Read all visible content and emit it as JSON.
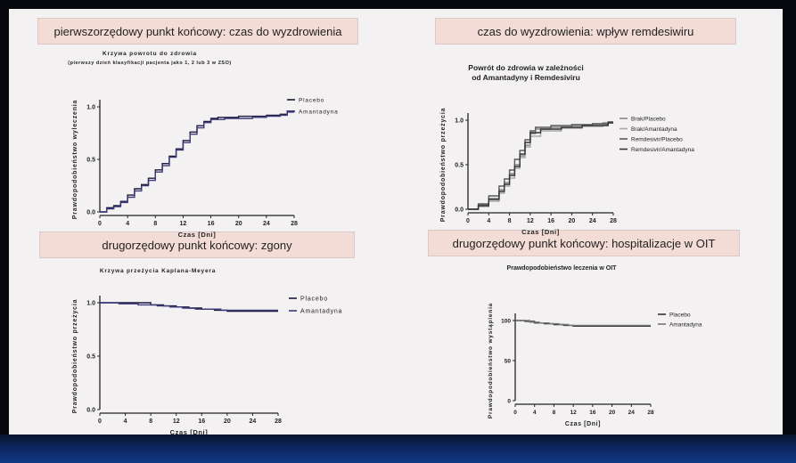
{
  "panels": {
    "tl": {
      "header": "pierwszorzędowy punkt końcowy: czas do wyzdrowienia"
    },
    "tr": {
      "header": "czas do wyzdrowienia: wpływ remdesiwiru"
    },
    "bl": {
      "header": "drugorzędowy punkt końcowy: zgony"
    },
    "br": {
      "header": "drugorzędowy punkt końcowy: hospitalizacje w OIT"
    }
  },
  "chart_data": [
    {
      "type": "line",
      "title": "Krzywa powrotu do zdrowia",
      "subtitle": "(pierwszy dzień klasyfikacji pacjenta jako 1, 2 lub 3 w ZSO)",
      "xlabel": "Czas [Dni]",
      "ylabel": "Prawdopodobieństwo wyleczenia",
      "xticks": [
        "0",
        "4",
        "8",
        "12",
        "16",
        "20",
        "24",
        "28"
      ],
      "yticks": [
        "0.0",
        "0.5",
        "1.0"
      ],
      "xlim": [
        0,
        28
      ],
      "ylim": [
        0,
        1
      ],
      "legend_position": "right",
      "step": true,
      "series": [
        {
          "name": "Placebo",
          "color": "#1b1b3a",
          "x": [
            0,
            1,
            2,
            3,
            4,
            5,
            6,
            7,
            8,
            9,
            10,
            11,
            12,
            13,
            14,
            15,
            16,
            17,
            18,
            20,
            22,
            24,
            26,
            27
          ],
          "y": [
            0.0,
            0.04,
            0.06,
            0.1,
            0.16,
            0.22,
            0.26,
            0.32,
            0.4,
            0.46,
            0.53,
            0.6,
            0.68,
            0.76,
            0.82,
            0.86,
            0.89,
            0.9,
            0.9,
            0.91,
            0.91,
            0.92,
            0.93,
            0.96
          ]
        },
        {
          "name": "Amantadyna",
          "color": "#3a3a7a",
          "x": [
            0,
            1,
            2,
            3,
            4,
            5,
            6,
            7,
            8,
            9,
            10,
            11,
            12,
            13,
            14,
            15,
            16,
            18,
            20,
            22,
            24,
            26,
            27
          ],
          "y": [
            0.0,
            0.03,
            0.05,
            0.09,
            0.14,
            0.2,
            0.25,
            0.3,
            0.38,
            0.44,
            0.52,
            0.59,
            0.66,
            0.74,
            0.8,
            0.85,
            0.88,
            0.89,
            0.89,
            0.9,
            0.91,
            0.92,
            0.95
          ]
        }
      ]
    },
    {
      "type": "line",
      "title": "Powrót do zdrowia w zależności od Amantadyny i Remdesiviru",
      "xlabel": "Czas [Dni]",
      "ylabel": "Prawdopodobieństwo przeżycia",
      "xticks": [
        "0",
        "4",
        "8",
        "12",
        "16",
        "20",
        "24",
        "28"
      ],
      "yticks": [
        "0.0",
        "0.5",
        "1.0"
      ],
      "xlim": [
        0,
        28
      ],
      "ylim": [
        0,
        1
      ],
      "legend_position": "right",
      "step": true,
      "series": [
        {
          "name": "Brak/Placebo",
          "color": "#888888",
          "x": [
            0,
            2,
            4,
            6,
            7,
            8,
            9,
            10,
            11,
            12,
            13,
            16,
            20,
            24,
            26,
            27
          ],
          "y": [
            0.0,
            0.05,
            0.12,
            0.22,
            0.3,
            0.4,
            0.5,
            0.6,
            0.72,
            0.85,
            0.9,
            0.92,
            0.94,
            0.96,
            0.97,
            0.98
          ]
        },
        {
          "name": "Brak/Amantadyna",
          "color": "#a8a8a8",
          "x": [
            0,
            2,
            4,
            6,
            7,
            8,
            9,
            10,
            11,
            12,
            14,
            18,
            22,
            26,
            27
          ],
          "y": [
            0.0,
            0.03,
            0.09,
            0.18,
            0.26,
            0.35,
            0.46,
            0.58,
            0.7,
            0.82,
            0.88,
            0.91,
            0.93,
            0.95,
            0.97
          ]
        },
        {
          "name": "Remdesivir/Placebo",
          "color": "#5a5a5a",
          "x": [
            0,
            2,
            4,
            6,
            7,
            8,
            9,
            10,
            11,
            12,
            13,
            16,
            20,
            24,
            27
          ],
          "y": [
            0.0,
            0.06,
            0.15,
            0.26,
            0.34,
            0.44,
            0.56,
            0.66,
            0.78,
            0.88,
            0.92,
            0.94,
            0.95,
            0.96,
            0.98
          ]
        },
        {
          "name": "Remdesivir/Amantadyna",
          "color": "#333333",
          "x": [
            0,
            2,
            4,
            6,
            7,
            8,
            9,
            10,
            11,
            12,
            14,
            18,
            22,
            27
          ],
          "y": [
            0.0,
            0.04,
            0.11,
            0.2,
            0.28,
            0.38,
            0.48,
            0.62,
            0.75,
            0.86,
            0.9,
            0.92,
            0.94,
            0.97
          ]
        }
      ]
    },
    {
      "type": "line",
      "title": "Krzywa przeżycia Kaplana-Meyera",
      "xlabel": "Czas [Dni]",
      "ylabel": "Prawdopodobieństwo przeżycia",
      "xticks": [
        "0",
        "4",
        "8",
        "12",
        "16",
        "20",
        "24",
        "28"
      ],
      "yticks": [
        "0.0",
        "0.5",
        "1.0"
      ],
      "xlim": [
        0,
        28
      ],
      "ylim": [
        0,
        1
      ],
      "legend_position": "right",
      "step": true,
      "series": [
        {
          "name": "Placebo",
          "color": "#1b1b3a",
          "x": [
            0,
            4,
            8,
            10,
            12,
            14,
            16,
            18,
            20,
            24,
            27
          ],
          "y": [
            1.0,
            1.0,
            0.98,
            0.97,
            0.96,
            0.95,
            0.94,
            0.93,
            0.92,
            0.92,
            0.92
          ]
        },
        {
          "name": "Amantadyna",
          "color": "#3a3a7a",
          "x": [
            0,
            3,
            6,
            9,
            11,
            13,
            15,
            17,
            19,
            22,
            27
          ],
          "y": [
            1.0,
            0.99,
            0.98,
            0.97,
            0.96,
            0.95,
            0.94,
            0.94,
            0.93,
            0.93,
            0.93
          ]
        }
      ]
    },
    {
      "type": "line",
      "title": "Prawdopodobieństwo leczenia w OIT",
      "xlabel": "Czas [Dni]",
      "ylabel": "Prawdopodobieństwo wystąpienia",
      "xticks": [
        "0",
        "4",
        "8",
        "12",
        "16",
        "20",
        "24",
        "28"
      ],
      "yticks": [
        "0",
        "50",
        "100"
      ],
      "xlim": [
        0,
        28
      ],
      "ylim": [
        0,
        100
      ],
      "legend_position": "right",
      "step": true,
      "series": [
        {
          "name": "Placebo",
          "color": "#333333",
          "x": [
            0,
            2,
            4,
            6,
            8,
            10,
            12,
            16,
            20,
            24,
            27
          ],
          "y": [
            100,
            99,
            97,
            96,
            95,
            94,
            93,
            93,
            93,
            93,
            93
          ]
        },
        {
          "name": "Amantadyna",
          "color": "#777777",
          "x": [
            0,
            3,
            5,
            7,
            9,
            11,
            14,
            18,
            22,
            27
          ],
          "y": [
            100,
            98,
            97,
            96,
            95,
            94,
            94,
            94,
            94,
            94
          ]
        }
      ]
    }
  ]
}
